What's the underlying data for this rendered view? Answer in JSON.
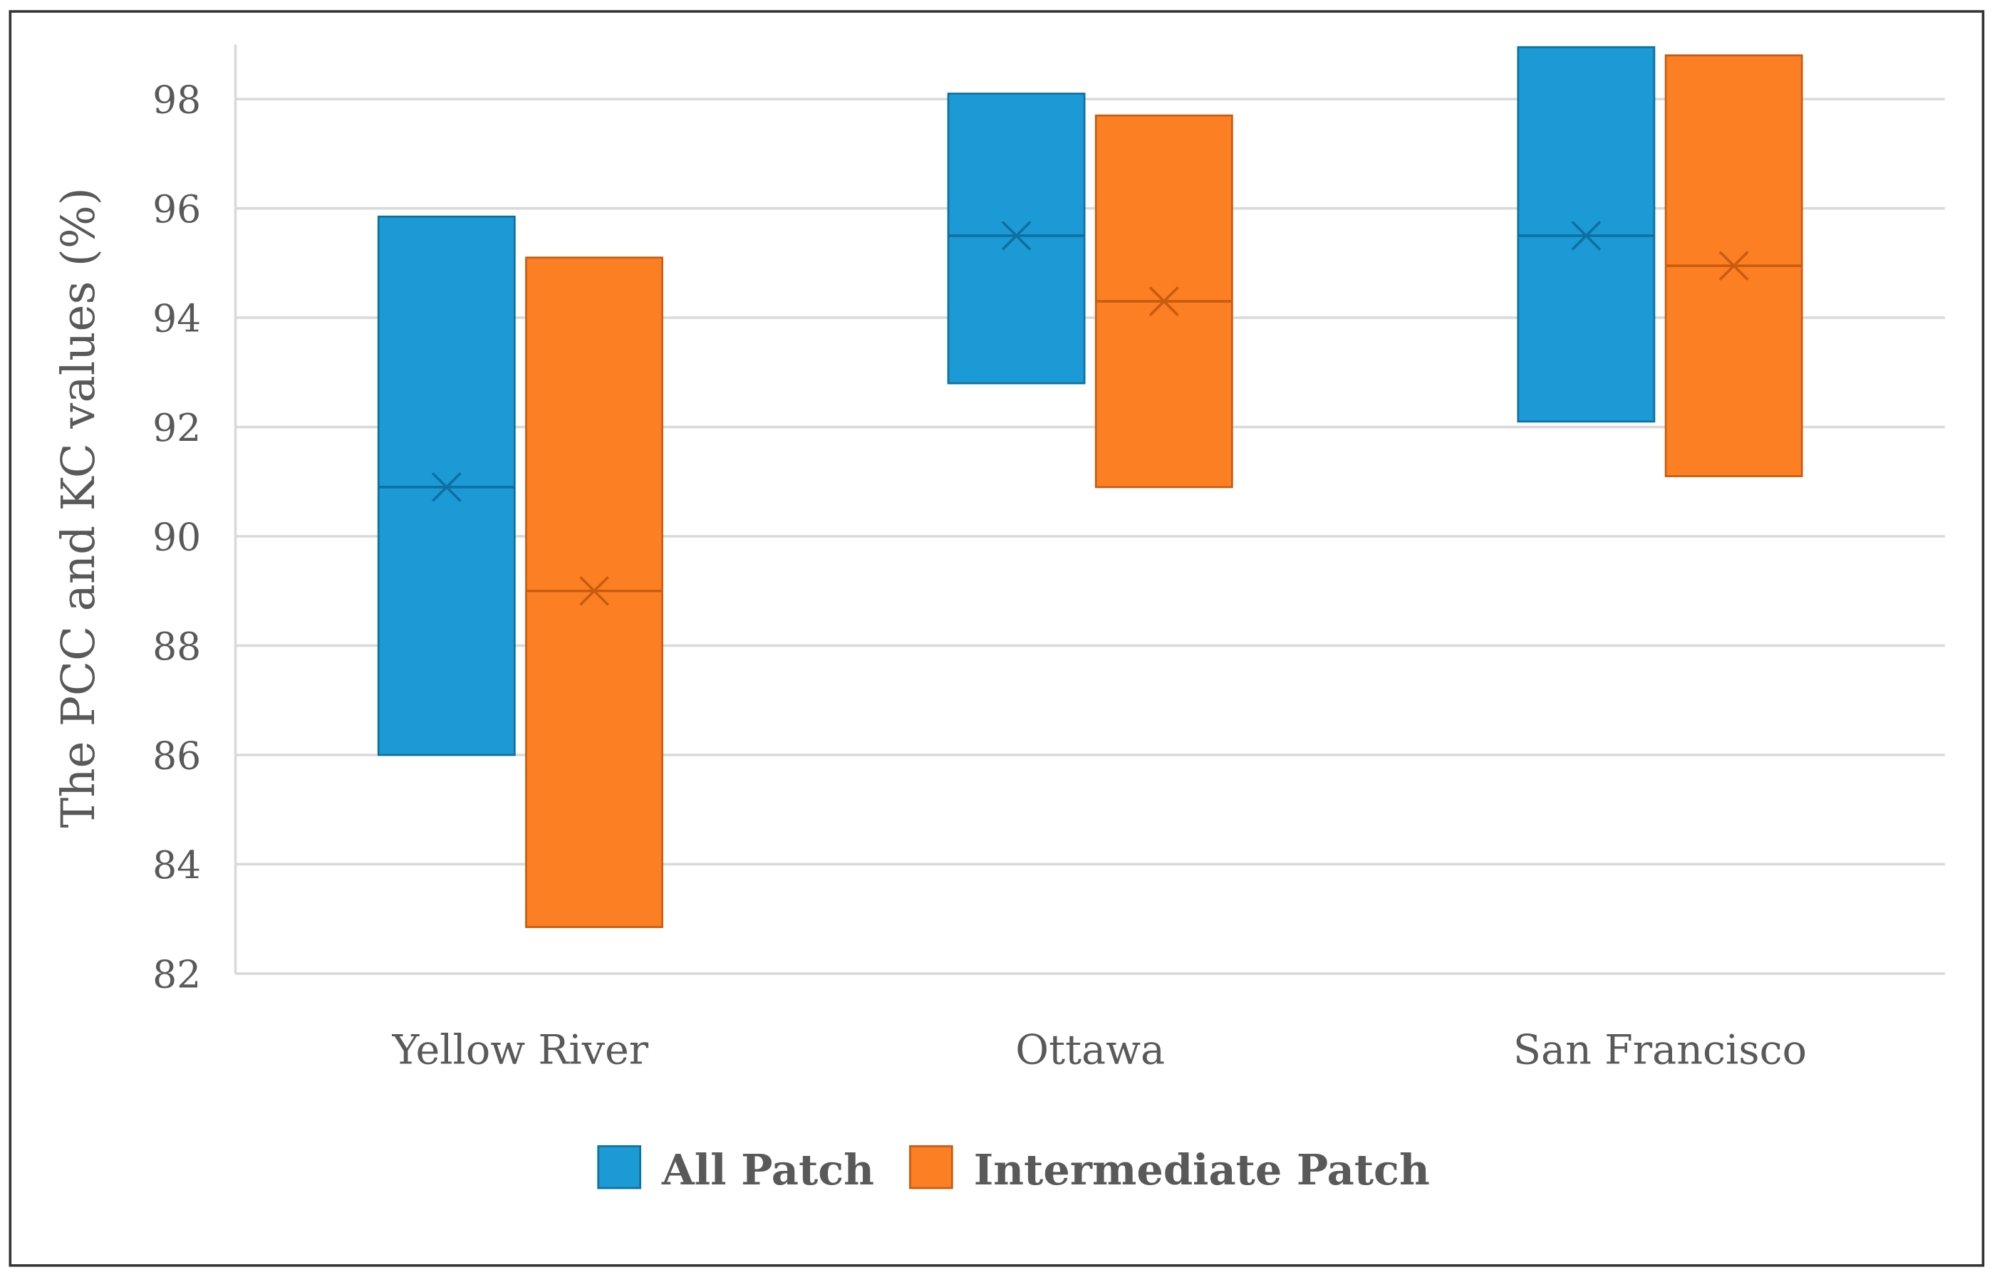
{
  "chart_data": {
    "type": "floating-bar",
    "title": "",
    "xlabel": "",
    "ylabel": "The PCC and KC values (%)",
    "ylim": [
      82,
      99
    ],
    "yticks": [
      82,
      84,
      86,
      88,
      90,
      92,
      94,
      96,
      98
    ],
    "grid": true,
    "legend_position": "bottom",
    "categories": [
      "Yellow River",
      "Ottawa",
      "San Francisco"
    ],
    "series": [
      {
        "name": "All Patch",
        "color": "#1B9AD6",
        "edge": "#0F6FA0",
        "min": [
          86.0,
          92.8,
          92.1
        ],
        "max": [
          95.85,
          98.1,
          98.95
        ],
        "mean": [
          90.9,
          95.5,
          95.5
        ]
      },
      {
        "name": "Intermediate Patch",
        "color": "#FD7F23",
        "edge": "#C75C10",
        "min": [
          82.85,
          90.9,
          91.1
        ],
        "max": [
          95.1,
          97.7,
          98.8
        ],
        "mean": [
          89.0,
          94.3,
          94.95
        ]
      }
    ]
  }
}
